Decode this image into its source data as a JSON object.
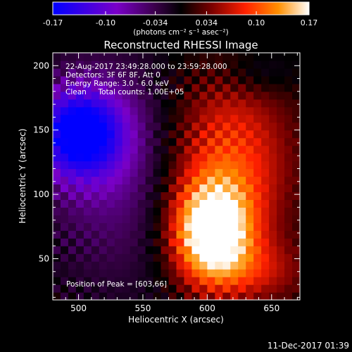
{
  "chart_data": {
    "type": "heatmap",
    "title": "Reconstructed RHESSI Image",
    "xlabel": "Heliocentric X (arcsec)",
    "ylabel": "Heliocentric Y (arcsec)",
    "xlim": [
      480,
      672
    ],
    "ylim": [
      18,
      210
    ],
    "x_ticks": [
      500,
      550,
      600,
      650
    ],
    "y_ticks": [
      50,
      100,
      150,
      200
    ],
    "colorbar": {
      "range": [
        -0.17,
        0.17
      ],
      "ticks": [
        "-0.17",
        "-0.10",
        "-0.034",
        "0.034",
        "0.10",
        "0.17"
      ],
      "unit_label": "(photons cm⁻² s⁻¹ asec⁻²)",
      "colormap": [
        "#0000ff",
        "#7a00c8",
        "#3a004a",
        "#000000",
        "#7a0000",
        "#ff2000",
        "#ff9000",
        "#ffffff"
      ]
    },
    "annotations": [
      "22-Aug-2017 23:49:28.000 to 23:59:28.000",
      "Detectors: 3F 6F 8F, Att 0",
      "Energy Range: 3.0 - 6.0 keV",
      "Clean     Total counts: 1.00E+05"
    ],
    "peak_label": "Position of Peak = [603,66]",
    "peak": [
      603,
      66
    ],
    "grid": false
  },
  "footer": {
    "timestamp": "11-Dec-2017 01:39"
  }
}
